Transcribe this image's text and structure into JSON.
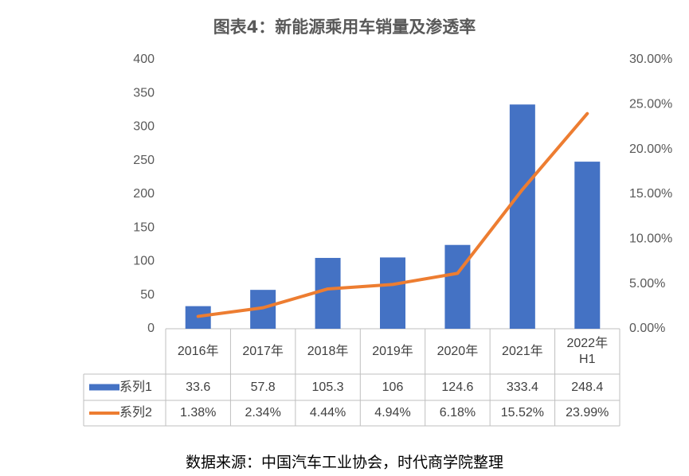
{
  "chart_data": {
    "type": "bar-line",
    "title": "图表4：新能源乘用车销量及渗透率",
    "source": "数据来源：中国汽车工业协会，时代商学院整理",
    "categories": [
      "2016年",
      "2017年",
      "2018年",
      "2019年",
      "2020年",
      "2021年",
      "2022年\nH1"
    ],
    "series": [
      {
        "name": "系列1",
        "type": "bar",
        "color": "#4472c4",
        "values": [
          33.6,
          57.8,
          105.3,
          106,
          124.6,
          333.4,
          248.4
        ]
      },
      {
        "name": "系列2",
        "type": "line",
        "axis": "y2",
        "color": "#ed7d31",
        "values": [
          1.38,
          2.34,
          4.44,
          4.94,
          6.18,
          15.52,
          23.99
        ],
        "value_labels": [
          "1.38%",
          "2.34%",
          "4.44%",
          "4.94%",
          "6.18%",
          "15.52%",
          "23.99%"
        ]
      }
    ],
    "ylim": [
      0,
      400
    ],
    "yticks": [
      0,
      50,
      100,
      150,
      200,
      250,
      300,
      350,
      400
    ],
    "y2lim": [
      0,
      30
    ],
    "y2ticks": [
      {
        "value": 0,
        "label": "0.00%"
      },
      {
        "value": 5,
        "label": "5.00%"
      },
      {
        "value": 10,
        "label": "10.00%"
      },
      {
        "value": 15,
        "label": "15.00%"
      },
      {
        "value": 20,
        "label": "20.00%"
      },
      {
        "value": 25,
        "label": "25.00%"
      },
      {
        "value": 30,
        "label": "30.00%"
      }
    ]
  }
}
